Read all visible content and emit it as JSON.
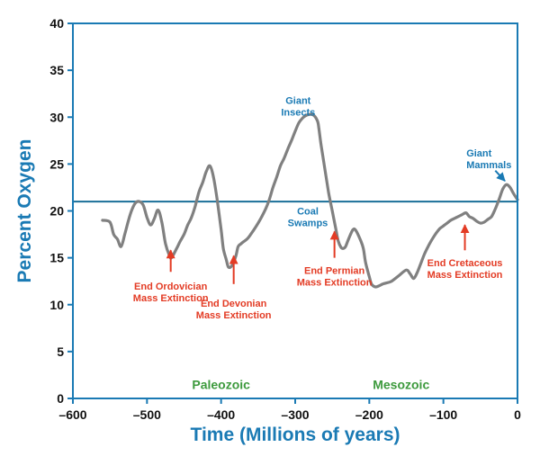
{
  "chart_data": {
    "type": "line",
    "title": "",
    "xlabel": "Time (Millions of years)",
    "ylabel": "Percent Oxygen",
    "xlim": [
      -600,
      0
    ],
    "ylim": [
      0,
      40
    ],
    "x_ticks": [
      -600,
      -500,
      -400,
      -300,
      -200,
      -100,
      0
    ],
    "x_tick_labels": [
      "–600",
      "–500",
      "–400",
      "–300",
      "–200",
      "–100",
      "0"
    ],
    "y_ticks": [
      0,
      5,
      10,
      15,
      20,
      25,
      30,
      35,
      40
    ],
    "y_tick_labels": [
      "0",
      "5",
      "10",
      "15",
      "20",
      "25",
      "30",
      "35",
      "40"
    ],
    "reference_line": {
      "y": 21
    },
    "colors": {
      "axis": "#1a7ab4",
      "series": "#808080",
      "reference": "#1a6f98",
      "extinction": "#e33b24",
      "era": "#3d9a3d",
      "highlight": "#1a7ab4"
    },
    "series": [
      {
        "name": "Percent Oxygen",
        "x": [
          -560,
          -550,
          -545,
          -540,
          -535,
          -530,
          -525,
          -520,
          -515,
          -510,
          -505,
          -500,
          -495,
          -490,
          -485,
          -480,
          -475,
          -470,
          -467,
          -460,
          -455,
          -450,
          -445,
          -440,
          -435,
          -430,
          -425,
          -420,
          -415,
          -410,
          -405,
          -400,
          -397,
          -393,
          -390,
          -385,
          -380,
          -377,
          -373,
          -370,
          -365,
          -360,
          -350,
          -340,
          -335,
          -330,
          -325,
          -320,
          -315,
          -310,
          -305,
          -300,
          -295,
          -290,
          -285,
          -280,
          -275,
          -270,
          -268,
          -265,
          -260,
          -255,
          -250,
          -245,
          -242,
          -238,
          -235,
          -232,
          -228,
          -222,
          -218,
          -212,
          -208,
          -205,
          -200,
          -197,
          -192,
          -187,
          -182,
          -178,
          -170,
          -160,
          -150,
          -145,
          -140,
          -135,
          -130,
          -125,
          -120,
          -115,
          -110,
          -105,
          -100,
          -95,
          -90,
          -85,
          -80,
          -75,
          -70,
          -67,
          -65,
          -60,
          -55,
          -50,
          -45,
          -40,
          -35,
          -30,
          -25,
          -20,
          -15,
          -10,
          -5,
          0
        ],
        "values": [
          19,
          18.8,
          17.5,
          17,
          16.2,
          17.5,
          19,
          20.2,
          20.9,
          21,
          20.6,
          19.3,
          18.5,
          19.2,
          20.1,
          18.8,
          16.5,
          15.3,
          15,
          16,
          16.8,
          17.5,
          18.5,
          19.3,
          20.5,
          22,
          23,
          24.2,
          24.8,
          23.5,
          21,
          18,
          16,
          14.8,
          14,
          14.2,
          15.2,
          16.2,
          16.5,
          16.7,
          17,
          17.5,
          18.7,
          20.2,
          21.2,
          22.5,
          23.6,
          24.8,
          25.6,
          26.6,
          27.5,
          28.5,
          29.4,
          29.9,
          30.2,
          30.3,
          30.2,
          29.6,
          28.8,
          27,
          24.5,
          22,
          20,
          18,
          16.8,
          16.1,
          16,
          16.2,
          17,
          18,
          17.9,
          16.9,
          16,
          14.5,
          13,
          12.2,
          11.9,
          12,
          12.2,
          12.3,
          12.5,
          13.1,
          13.7,
          13.3,
          12.8,
          13.5,
          14.5,
          15.5,
          16.3,
          17,
          17.6,
          18.1,
          18.4,
          18.7,
          19,
          19.2,
          19.4,
          19.6,
          19.8,
          19.6,
          19.4,
          19.2,
          18.9,
          18.7,
          18.8,
          19.1,
          19.4,
          20.2,
          21.2,
          22.3,
          22.8,
          22.5,
          21.8,
          21.2
        ]
      }
    ],
    "annotations": [
      {
        "id": "giant_insects",
        "lines": [
          "Giant",
          "Insects"
        ],
        "color_key": "highlight",
        "x": -296,
        "y": 31.4,
        "anchor": "middle"
      },
      {
        "id": "coal_swamps",
        "lines": [
          "Coal",
          "Swamps"
        ],
        "color_key": "highlight",
        "x": -283,
        "y": 19.6,
        "anchor": "middle"
      },
      {
        "id": "giant_mammals",
        "lines": [
          "Giant",
          "Mammals"
        ],
        "color_key": "highlight",
        "x": -69,
        "y": 25.8,
        "anchor": "start",
        "arrow": {
          "from": [
            -30,
            24.3
          ],
          "to": [
            -17,
            23.2
          ]
        }
      },
      {
        "id": "end_ordovician",
        "lines": [
          "End Ordovician",
          "Mass Extinction"
        ],
        "color_key": "extinction",
        "x": -468,
        "y": 11.6,
        "anchor": "middle",
        "arrow": {
          "from": [
            -468,
            13.5
          ],
          "to": [
            -468,
            15.8
          ]
        }
      },
      {
        "id": "end_devonian",
        "lines": [
          "End Devonian",
          "Mass Extinction"
        ],
        "color_key": "extinction",
        "x": -383,
        "y": 9.8,
        "anchor": "middle",
        "arrow": {
          "from": [
            -383,
            12.2
          ],
          "to": [
            -383,
            15.2
          ]
        }
      },
      {
        "id": "end_permian",
        "lines": [
          "End Permian",
          "Mass Extinction"
        ],
        "color_key": "extinction",
        "x": -247,
        "y": 13.3,
        "anchor": "middle",
        "arrow": {
          "from": [
            -247,
            15.0
          ],
          "to": [
            -247,
            17.8
          ]
        }
      },
      {
        "id": "end_cretaceous",
        "lines": [
          "End Cretaceous",
          "Mass Extinction"
        ],
        "color_key": "extinction",
        "x": -71,
        "y": 14.1,
        "anchor": "middle",
        "arrow": {
          "from": [
            -71,
            15.8
          ],
          "to": [
            -71,
            18.5
          ]
        }
      },
      {
        "id": "paleozoic",
        "lines": [
          "Paleozoic"
        ],
        "color_key": "era",
        "x": -400,
        "y": 1.0,
        "anchor": "middle",
        "era": true
      },
      {
        "id": "mesozoic",
        "lines": [
          "Mesozoic"
        ],
        "color_key": "era",
        "x": -157,
        "y": 1.0,
        "anchor": "middle",
        "era": true
      }
    ]
  }
}
